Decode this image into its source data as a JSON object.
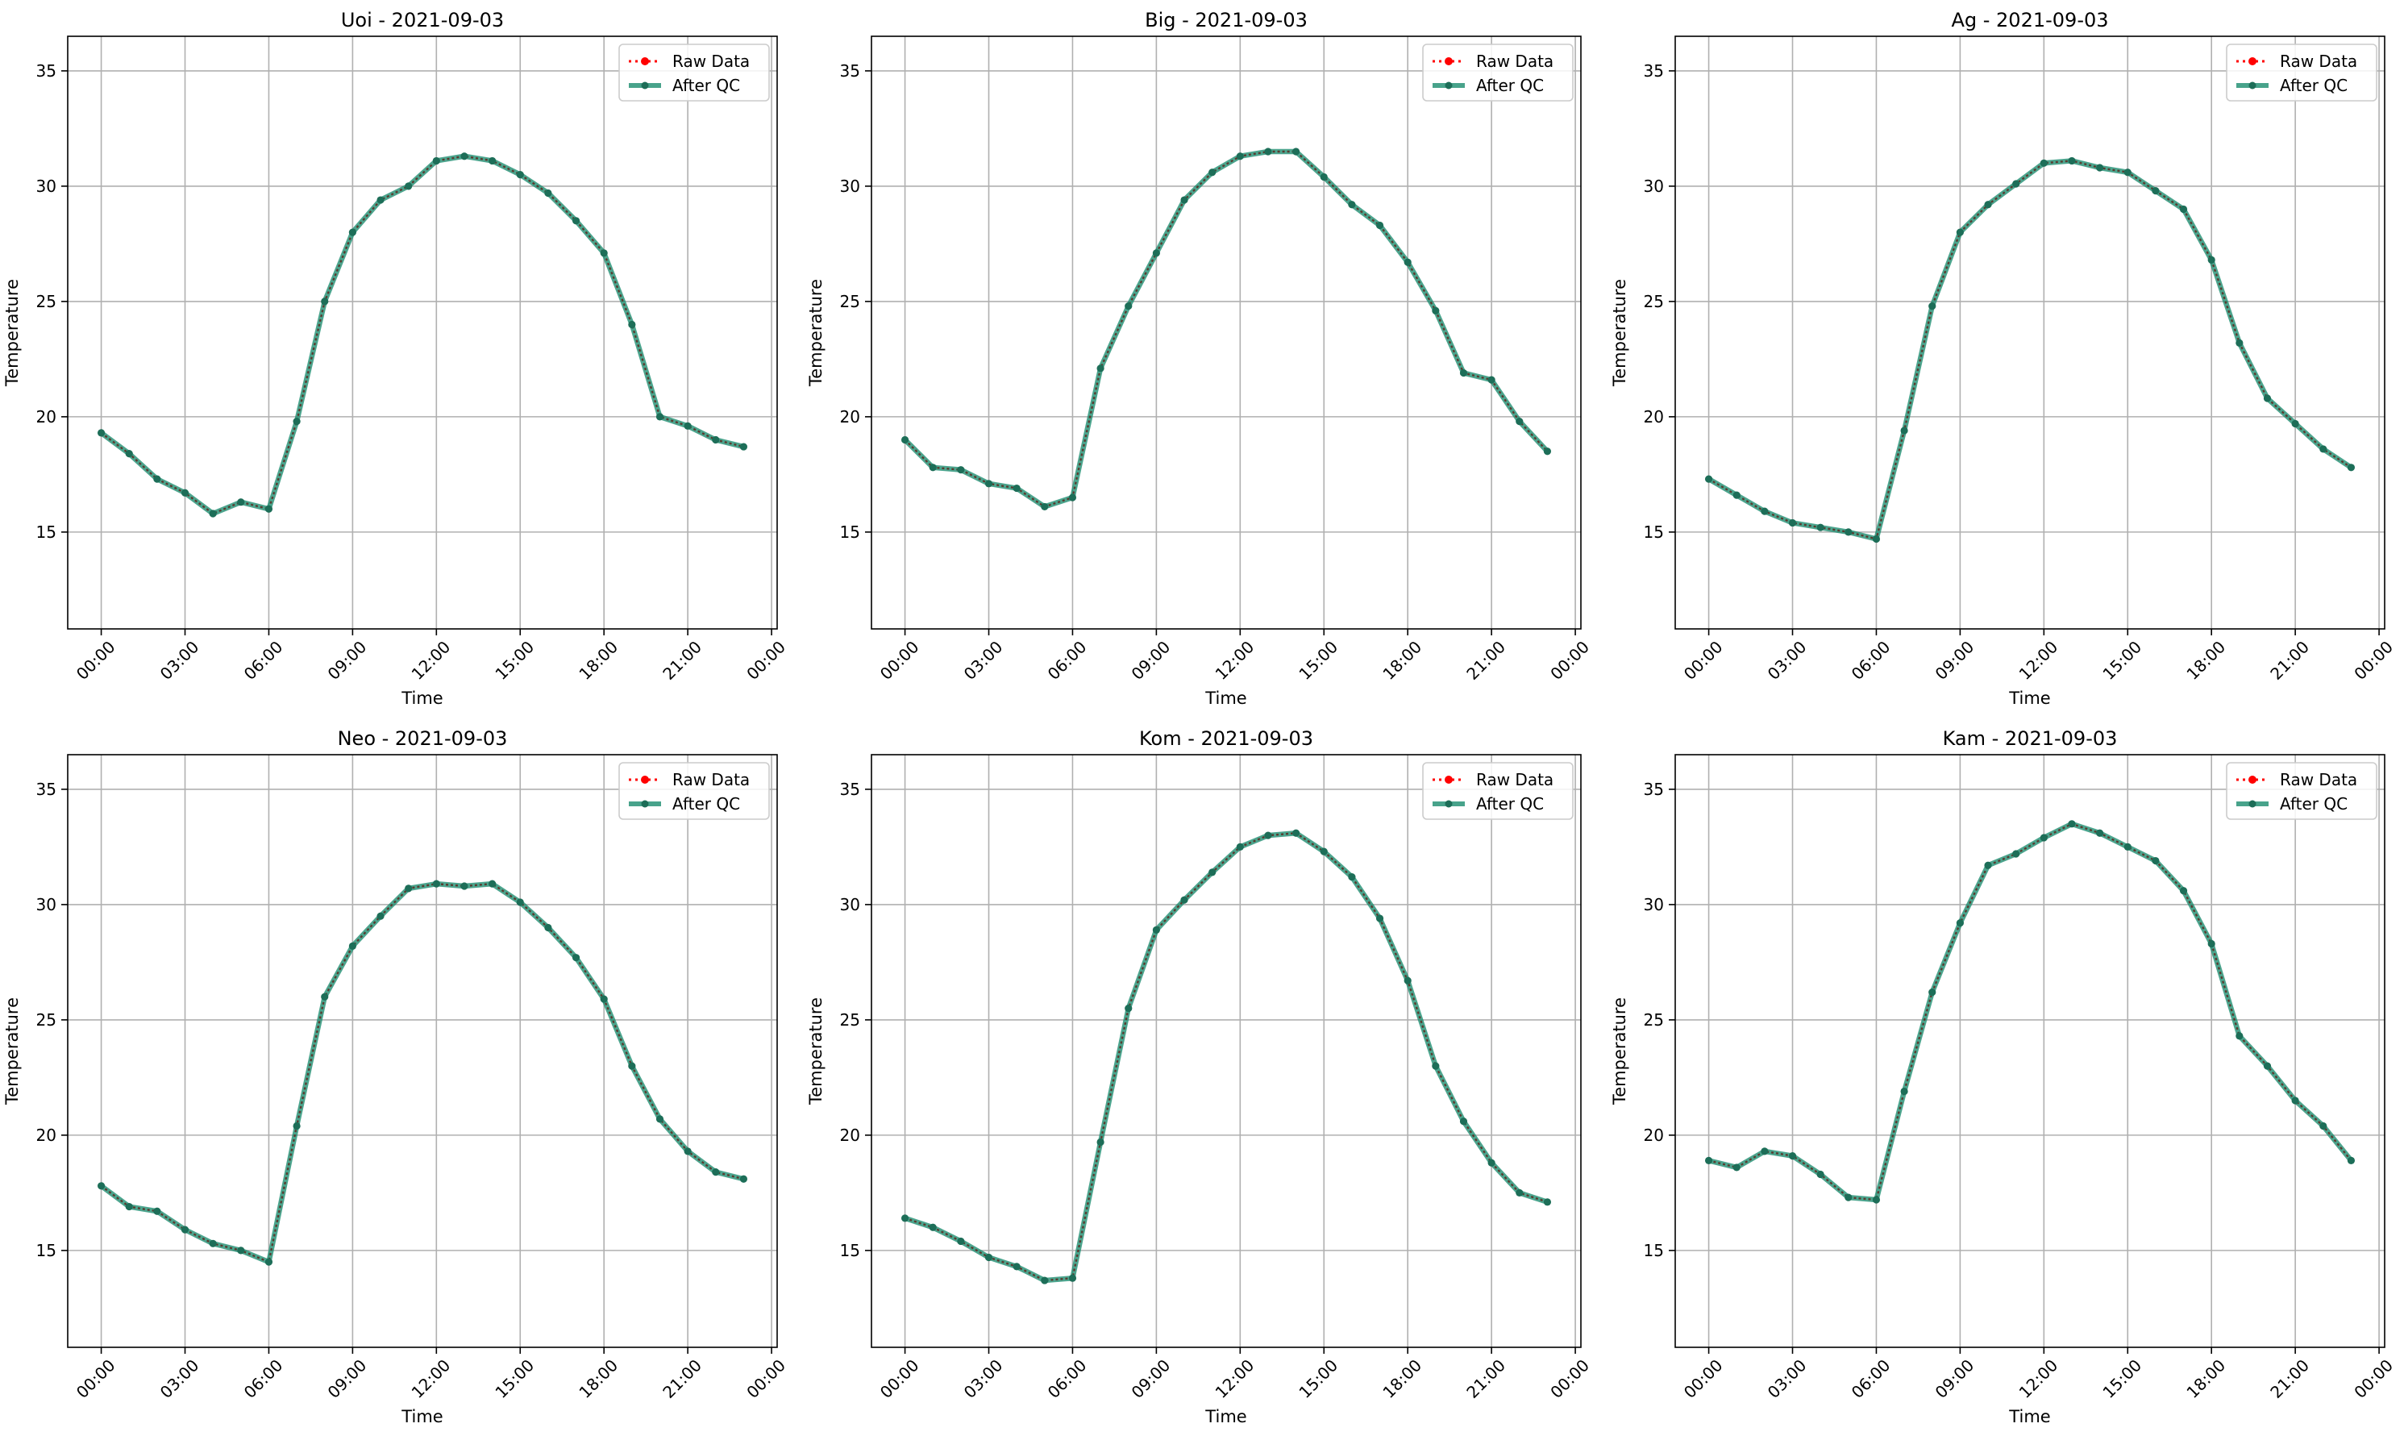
{
  "chart_data": [
    {
      "type": "line",
      "title": "Uoi - 2021-09-03",
      "xlabel": "Time",
      "ylabel": "Temperature",
      "xticks": [
        "00:00",
        "03:00",
        "06:00",
        "09:00",
        "12:00",
        "15:00",
        "18:00",
        "21:00",
        "00:00"
      ],
      "yticks": [
        15,
        20,
        25,
        30,
        35
      ],
      "xlim": [
        -1.2,
        24.2
      ],
      "ylim": [
        10.8,
        36.5
      ],
      "grid": true,
      "legend": "top-right",
      "x": [
        0,
        1,
        2,
        3,
        4,
        5,
        6,
        7,
        8,
        9,
        10,
        11,
        12,
        13,
        14,
        15,
        16,
        17,
        18,
        19,
        20,
        21,
        22,
        23
      ],
      "series": [
        {
          "name": "Raw Data",
          "color": "#ff0000",
          "style": "dotted",
          "values": [
            19.3,
            18.4,
            17.3,
            16.7,
            15.8,
            16.3,
            16.0,
            19.8,
            25.0,
            28.0,
            29.4,
            30.0,
            31.1,
            31.3,
            31.1,
            30.5,
            29.7,
            28.5,
            27.1,
            24.0,
            20.0,
            19.6,
            19.0,
            18.7
          ]
        },
        {
          "name": "After QC",
          "color": "#1a8c6e",
          "style": "solid",
          "values": [
            19.3,
            18.4,
            17.3,
            16.7,
            15.8,
            16.3,
            16.0,
            19.8,
            25.0,
            28.0,
            29.4,
            30.0,
            31.1,
            31.3,
            31.1,
            30.5,
            29.7,
            28.5,
            27.1,
            24.0,
            20.0,
            19.6,
            19.0,
            18.7
          ]
        }
      ]
    },
    {
      "type": "line",
      "title": "Big - 2021-09-03",
      "xlabel": "Time",
      "ylabel": "Temperature",
      "xticks": [
        "00:00",
        "03:00",
        "06:00",
        "09:00",
        "12:00",
        "15:00",
        "18:00",
        "21:00",
        "00:00"
      ],
      "yticks": [
        15,
        20,
        25,
        30,
        35
      ],
      "xlim": [
        -1.2,
        24.2
      ],
      "ylim": [
        10.8,
        36.5
      ],
      "grid": true,
      "legend": "top-right",
      "x": [
        0,
        1,
        2,
        3,
        4,
        5,
        6,
        7,
        8,
        9,
        10,
        11,
        12,
        13,
        14,
        15,
        16,
        17,
        18,
        19,
        20,
        21,
        22,
        23
      ],
      "series": [
        {
          "name": "Raw Data",
          "color": "#ff0000",
          "style": "dotted",
          "values": [
            19.0,
            17.8,
            17.7,
            17.1,
            16.9,
            16.1,
            16.5,
            22.1,
            24.8,
            27.1,
            29.4,
            30.6,
            31.3,
            31.5,
            31.5,
            30.4,
            29.2,
            28.3,
            26.7,
            24.6,
            21.9,
            21.6,
            19.8,
            18.5
          ]
        },
        {
          "name": "After QC",
          "color": "#1a8c6e",
          "style": "solid",
          "values": [
            19.0,
            17.8,
            17.7,
            17.1,
            16.9,
            16.1,
            16.5,
            22.1,
            24.8,
            27.1,
            29.4,
            30.6,
            31.3,
            31.5,
            31.5,
            30.4,
            29.2,
            28.3,
            26.7,
            24.6,
            21.9,
            21.6,
            19.8,
            18.5
          ]
        }
      ]
    },
    {
      "type": "line",
      "title": "Ag - 2021-09-03",
      "xlabel": "Time",
      "ylabel": "Temperature",
      "xticks": [
        "00:00",
        "03:00",
        "06:00",
        "09:00",
        "12:00",
        "15:00",
        "18:00",
        "21:00",
        "00:00"
      ],
      "yticks": [
        15,
        20,
        25,
        30,
        35
      ],
      "xlim": [
        -1.2,
        24.2
      ],
      "ylim": [
        10.8,
        36.5
      ],
      "grid": true,
      "legend": "top-right",
      "x": [
        0,
        1,
        2,
        3,
        4,
        5,
        6,
        7,
        8,
        9,
        10,
        11,
        12,
        13,
        14,
        15,
        16,
        17,
        18,
        19,
        20,
        21,
        22,
        23
      ],
      "series": [
        {
          "name": "Raw Data",
          "color": "#ff0000",
          "style": "dotted",
          "values": [
            17.3,
            16.6,
            15.9,
            15.4,
            15.2,
            15.0,
            14.7,
            19.4,
            24.8,
            28.0,
            29.2,
            30.1,
            31.0,
            31.1,
            30.8,
            30.6,
            29.8,
            29.0,
            26.8,
            23.2,
            20.8,
            19.7,
            18.6,
            17.8
          ]
        },
        {
          "name": "After QC",
          "color": "#1a8c6e",
          "style": "solid",
          "values": [
            17.3,
            16.6,
            15.9,
            15.4,
            15.2,
            15.0,
            14.7,
            19.4,
            24.8,
            28.0,
            29.2,
            30.1,
            31.0,
            31.1,
            30.8,
            30.6,
            29.8,
            29.0,
            26.8,
            23.2,
            20.8,
            19.7,
            18.6,
            17.8
          ]
        }
      ]
    },
    {
      "type": "line",
      "title": "Neo - 2021-09-03",
      "xlabel": "Time",
      "ylabel": "Temperature",
      "xticks": [
        "00:00",
        "03:00",
        "06:00",
        "09:00",
        "12:00",
        "15:00",
        "18:00",
        "21:00",
        "00:00"
      ],
      "yticks": [
        15,
        20,
        25,
        30,
        35
      ],
      "xlim": [
        -1.2,
        24.2
      ],
      "ylim": [
        10.8,
        36.5
      ],
      "grid": true,
      "legend": "top-right",
      "x": [
        0,
        1,
        2,
        3,
        4,
        5,
        6,
        7,
        8,
        9,
        10,
        11,
        12,
        13,
        14,
        15,
        16,
        17,
        18,
        19,
        20,
        21,
        22,
        23
      ],
      "series": [
        {
          "name": "Raw Data",
          "color": "#ff0000",
          "style": "dotted",
          "values": [
            17.8,
            16.9,
            16.7,
            15.9,
            15.3,
            15.0,
            14.5,
            20.4,
            26.0,
            28.2,
            29.5,
            30.7,
            30.9,
            30.8,
            30.9,
            30.1,
            29.0,
            27.7,
            25.9,
            23.0,
            20.7,
            19.3,
            18.4,
            18.1
          ]
        },
        {
          "name": "After QC",
          "color": "#1a8c6e",
          "style": "solid",
          "values": [
            17.8,
            16.9,
            16.7,
            15.9,
            15.3,
            15.0,
            14.5,
            20.4,
            26.0,
            28.2,
            29.5,
            30.7,
            30.9,
            30.8,
            30.9,
            30.1,
            29.0,
            27.7,
            25.9,
            23.0,
            20.7,
            19.3,
            18.4,
            18.1
          ]
        }
      ]
    },
    {
      "type": "line",
      "title": "Kom - 2021-09-03",
      "xlabel": "Time",
      "ylabel": "Temperature",
      "xticks": [
        "00:00",
        "03:00",
        "06:00",
        "09:00",
        "12:00",
        "15:00",
        "18:00",
        "21:00",
        "00:00"
      ],
      "yticks": [
        15,
        20,
        25,
        30,
        35
      ],
      "xlim": [
        -1.2,
        24.2
      ],
      "ylim": [
        10.8,
        36.5
      ],
      "grid": true,
      "legend": "top-right",
      "x": [
        0,
        1,
        2,
        3,
        4,
        5,
        6,
        7,
        8,
        9,
        10,
        11,
        12,
        13,
        14,
        15,
        16,
        17,
        18,
        19,
        20,
        21,
        22,
        23
      ],
      "series": [
        {
          "name": "Raw Data",
          "color": "#ff0000",
          "style": "dotted",
          "values": [
            16.4,
            16.0,
            15.4,
            14.7,
            14.3,
            13.7,
            13.8,
            19.7,
            25.5,
            28.9,
            30.2,
            31.4,
            32.5,
            33.0,
            33.1,
            32.3,
            31.2,
            29.4,
            26.7,
            23.0,
            20.6,
            18.8,
            17.5,
            17.1
          ]
        },
        {
          "name": "After QC",
          "color": "#1a8c6e",
          "style": "solid",
          "values": [
            16.4,
            16.0,
            15.4,
            14.7,
            14.3,
            13.7,
            13.8,
            19.7,
            25.5,
            28.9,
            30.2,
            31.4,
            32.5,
            33.0,
            33.1,
            32.3,
            31.2,
            29.4,
            26.7,
            23.0,
            20.6,
            18.8,
            17.5,
            17.1
          ]
        }
      ]
    },
    {
      "type": "line",
      "title": "Kam - 2021-09-03",
      "xlabel": "Time",
      "ylabel": "Temperature",
      "xticks": [
        "00:00",
        "03:00",
        "06:00",
        "09:00",
        "12:00",
        "15:00",
        "18:00",
        "21:00",
        "00:00"
      ],
      "yticks": [
        15,
        20,
        25,
        30,
        35
      ],
      "xlim": [
        -1.2,
        24.2
      ],
      "ylim": [
        10.8,
        36.5
      ],
      "grid": true,
      "legend": "top-right",
      "x": [
        0,
        1,
        2,
        3,
        4,
        5,
        6,
        7,
        8,
        9,
        10,
        11,
        12,
        13,
        14,
        15,
        16,
        17,
        18,
        19,
        20,
        21,
        22,
        23
      ],
      "series": [
        {
          "name": "Raw Data",
          "color": "#ff0000",
          "style": "dotted",
          "values": [
            18.9,
            18.6,
            19.3,
            19.1,
            18.3,
            17.3,
            17.2,
            21.9,
            26.2,
            29.2,
            31.7,
            32.2,
            32.9,
            33.5,
            33.1,
            32.5,
            31.9,
            30.6,
            28.3,
            24.3,
            23.0,
            21.5,
            20.4,
            18.9
          ]
        },
        {
          "name": "After QC",
          "color": "#1a8c6e",
          "style": "solid",
          "values": [
            18.9,
            18.6,
            19.3,
            19.1,
            18.3,
            17.3,
            17.2,
            21.9,
            26.2,
            29.2,
            31.7,
            32.2,
            32.9,
            33.5,
            33.1,
            32.5,
            31.9,
            30.6,
            28.3,
            24.3,
            23.0,
            21.5,
            20.4,
            18.9
          ]
        }
      ]
    }
  ]
}
